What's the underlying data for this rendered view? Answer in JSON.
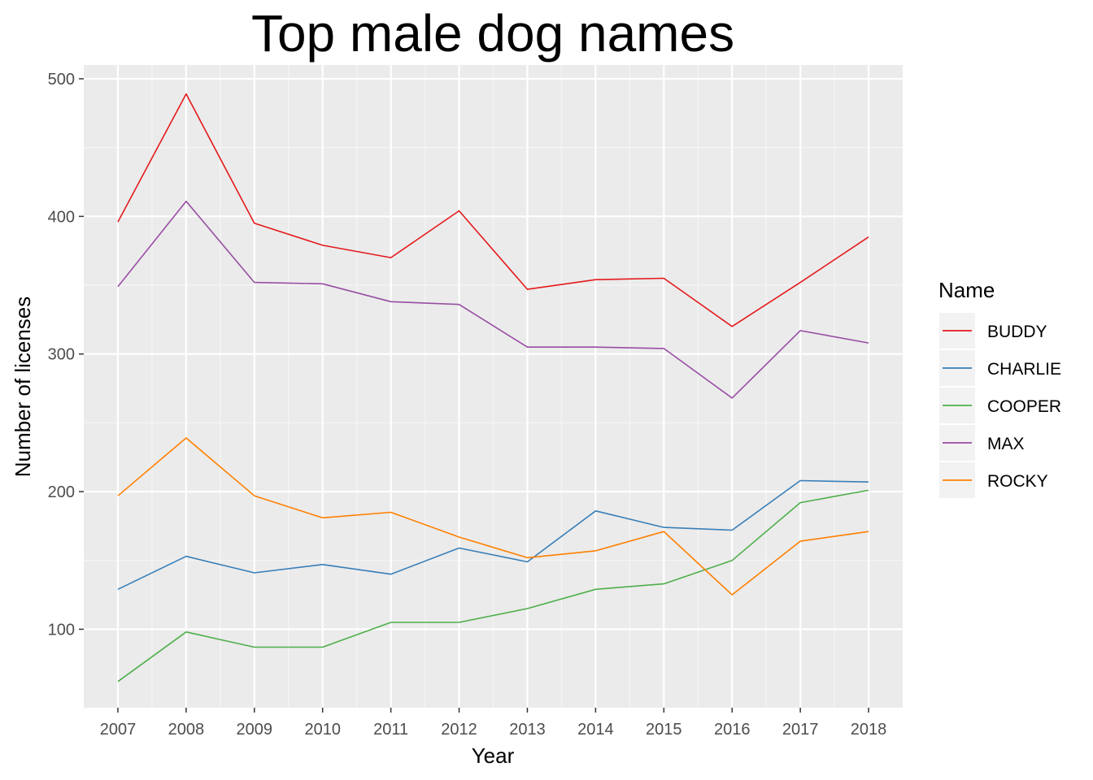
{
  "chart_data": {
    "type": "line",
    "title": "Top male dog names",
    "xlabel": "Year",
    "ylabel": "Number of licenses",
    "x": [
      2007,
      2008,
      2009,
      2010,
      2011,
      2012,
      2013,
      2014,
      2015,
      2016,
      2017,
      2018
    ],
    "xlim": [
      2006.5,
      2018.5
    ],
    "ylim": [
      43,
      510
    ],
    "yticks": [
      100,
      200,
      300,
      400,
      500
    ],
    "grid": true,
    "legend": {
      "title": "Name",
      "position": "right"
    },
    "series": [
      {
        "name": "BUDDY",
        "color": "#e41a1c",
        "values": [
          396,
          489,
          395,
          379,
          370,
          404,
          347,
          354,
          355,
          320,
          352,
          385
        ]
      },
      {
        "name": "CHARLIE",
        "color": "#377eb8",
        "values": [
          129,
          153,
          141,
          147,
          140,
          159,
          149,
          186,
          174,
          172,
          208,
          207
        ]
      },
      {
        "name": "COOPER",
        "color": "#4daf4a",
        "values": [
          62,
          98,
          87,
          87,
          105,
          105,
          115,
          129,
          133,
          150,
          192,
          201
        ]
      },
      {
        "name": "MAX",
        "color": "#984ea3",
        "values": [
          349,
          411,
          352,
          351,
          338,
          336,
          305,
          305,
          304,
          268,
          317,
          308
        ]
      },
      {
        "name": "ROCKY",
        "color": "#ff7f00",
        "values": [
          197,
          239,
          197,
          181,
          185,
          167,
          152,
          157,
          171,
          125,
          164,
          171
        ]
      }
    ]
  }
}
